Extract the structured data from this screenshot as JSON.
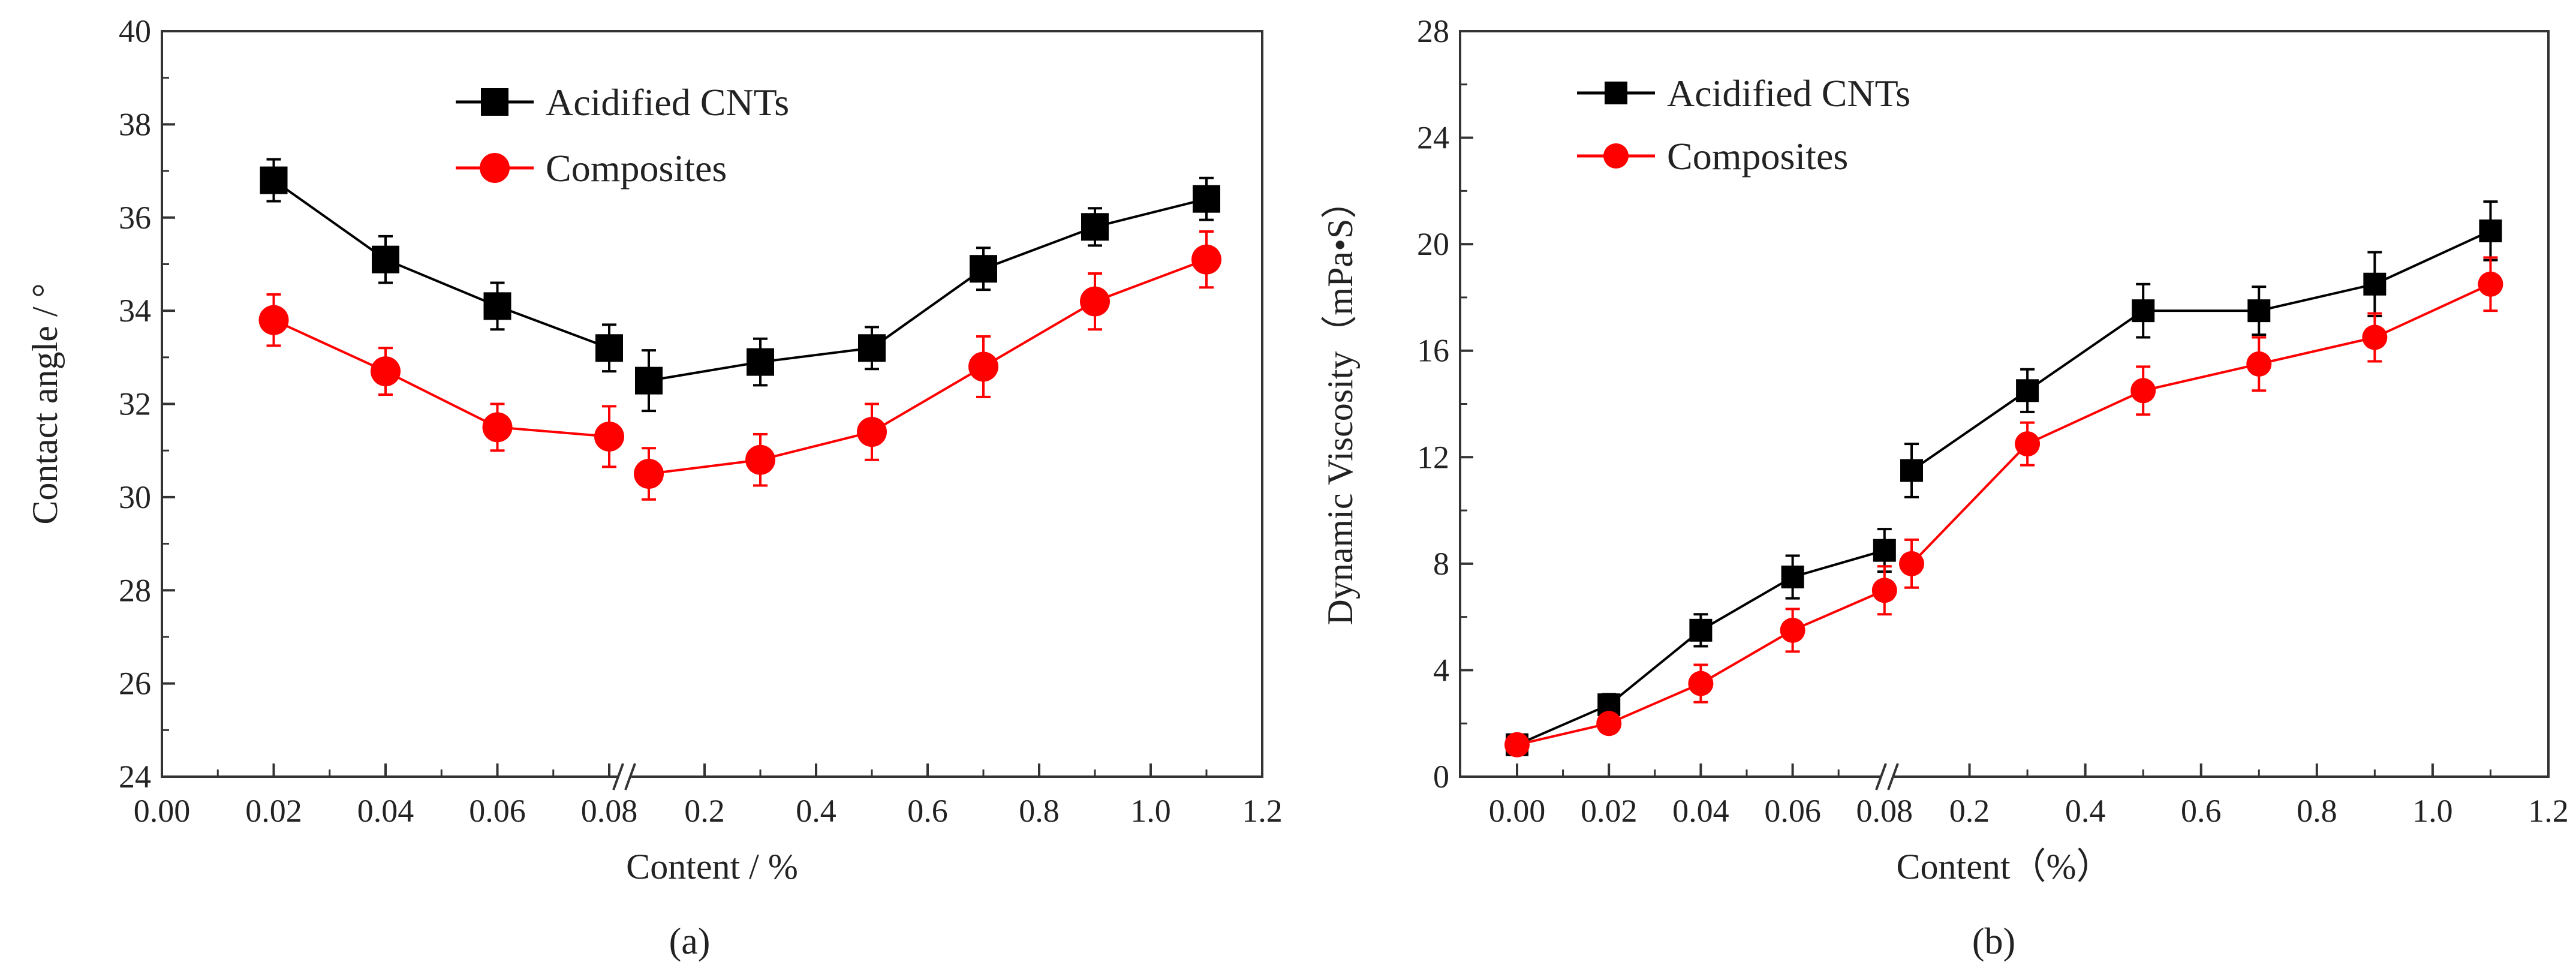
{
  "chart_data": [
    {
      "type": "line",
      "panel_label": "(a)",
      "xlabel": "Content / %",
      "ylabel": "Contact angle / °",
      "ylim": [
        24,
        40
      ],
      "y_ticks": [
        "24",
        "26",
        "28",
        "30",
        "32",
        "34",
        "36",
        "38",
        "40"
      ],
      "x_ticks_low": [
        "0.00",
        "0.02",
        "0.04",
        "0.06",
        "0.08"
      ],
      "x_ticks_high": [
        "0.2",
        "0.4",
        "0.6",
        "0.8",
        "1.0",
        "1.2"
      ],
      "x_break": true,
      "legend_position": "top-center",
      "series": [
        {
          "name": "Acidified CNTs",
          "color": "#000000",
          "marker": "square",
          "x": [
            0.02,
            0.04,
            0.06,
            0.08,
            0.1,
            0.3,
            0.5,
            0.7,
            0.9,
            1.1
          ],
          "values": [
            36.8,
            35.1,
            34.1,
            33.2,
            32.5,
            32.9,
            33.2,
            34.9,
            35.8,
            36.4
          ],
          "errors": [
            0.45,
            0.5,
            0.5,
            0.5,
            0.65,
            0.5,
            0.45,
            0.45,
            0.4,
            0.45
          ]
        },
        {
          "name": "Composites",
          "color": "#ff0000",
          "marker": "circle",
          "x": [
            0.02,
            0.04,
            0.06,
            0.08,
            0.1,
            0.3,
            0.5,
            0.7,
            0.9,
            1.1
          ],
          "values": [
            33.8,
            32.7,
            31.5,
            31.3,
            30.5,
            30.8,
            31.4,
            32.8,
            34.2,
            35.1
          ],
          "errors": [
            0.55,
            0.5,
            0.5,
            0.65,
            0.55,
            0.55,
            0.6,
            0.65,
            0.6,
            0.6
          ]
        }
      ]
    },
    {
      "type": "line",
      "panel_label": "(b)",
      "xlabel": "Content（%）",
      "ylabel": "Dynamic Viscosity（mPa•S）",
      "ylim": [
        0,
        28
      ],
      "y_ticks": [
        "0",
        "4",
        "8",
        "12",
        "16",
        "20",
        "24",
        "28"
      ],
      "x_ticks_low": [
        "0.00",
        "0.02",
        "0.04",
        "0.06",
        "0.08"
      ],
      "x_ticks_high": [
        "0.2",
        "0.4",
        "0.6",
        "0.8",
        "1.0",
        "1.2"
      ],
      "x_break": true,
      "legend_position": "top-left",
      "series": [
        {
          "name": "Acidified CNTs",
          "color": "#000000",
          "marker": "square",
          "x": [
            0.0,
            0.02,
            0.04,
            0.06,
            0.08,
            0.1,
            0.3,
            0.5,
            0.7,
            0.9,
            1.1
          ],
          "values": [
            1.2,
            2.7,
            5.5,
            7.5,
            8.5,
            11.5,
            14.5,
            17.5,
            17.5,
            18.5,
            20.5
          ],
          "errors": [
            0.3,
            0.4,
            0.6,
            0.8,
            0.8,
            1.0,
            0.8,
            1.0,
            0.9,
            1.2,
            1.1
          ]
        },
        {
          "name": "Composites",
          "color": "#ff0000",
          "marker": "circle",
          "x": [
            0.0,
            0.02,
            0.04,
            0.06,
            0.08,
            0.1,
            0.3,
            0.5,
            0.7,
            0.9,
            1.1
          ],
          "values": [
            1.2,
            2.0,
            3.5,
            5.5,
            7.0,
            8.0,
            12.5,
            14.5,
            15.5,
            16.5,
            18.5
          ],
          "errors": [
            0.3,
            0.3,
            0.7,
            0.8,
            0.9,
            0.9,
            0.8,
            0.9,
            1.0,
            0.9,
            1.0
          ]
        }
      ]
    }
  ]
}
